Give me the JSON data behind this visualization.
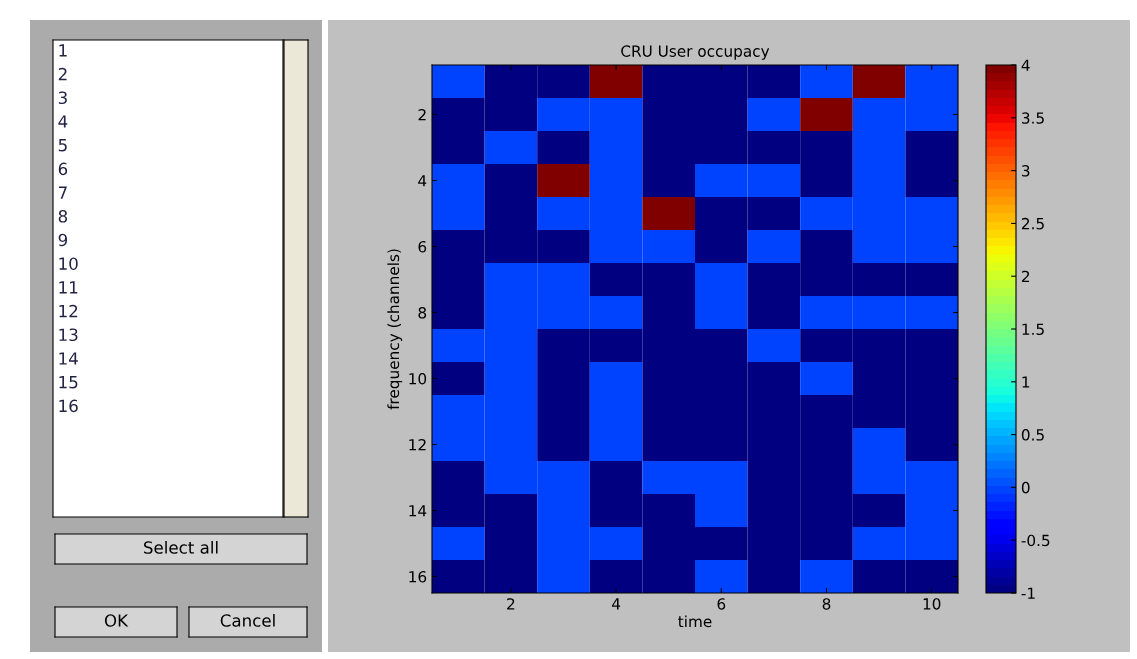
{
  "chart_data": {
    "type": "heatmap",
    "title": "CRU User occupacy",
    "xlabel": "time",
    "ylabel": "frequency (channels)",
    "categories": [
      null,
      "2",
      null,
      "4",
      null,
      "6",
      null,
      "8",
      null,
      "10"
    ],
    "y_categories": [
      null,
      "2",
      null,
      "4",
      null,
      "6",
      null,
      "8",
      null,
      "10",
      null,
      "12",
      null,
      "14",
      null,
      "16"
    ],
    "cells": [
      [
        0,
        -1,
        -1,
        4,
        -1,
        -1,
        -1,
        0,
        4,
        0
      ],
      [
        -1,
        -1,
        0,
        0,
        -1,
        -1,
        0,
        4,
        0,
        0
      ],
      [
        -1,
        0,
        -1,
        0,
        -1,
        -1,
        -1,
        -1,
        0,
        -1
      ],
      [
        0,
        -1,
        4,
        0,
        -1,
        0,
        0,
        -1,
        0,
        -1
      ],
      [
        0,
        -1,
        0,
        0,
        4,
        -1,
        -1,
        0,
        0,
        0
      ],
      [
        -1,
        -1,
        -1,
        0,
        0,
        -1,
        0,
        -1,
        0,
        0
      ],
      [
        -1,
        0,
        0,
        -1,
        -1,
        0,
        -1,
        -1,
        -1,
        -1
      ],
      [
        -1,
        0,
        0,
        0,
        -1,
        0,
        -1,
        0,
        0,
        0
      ],
      [
        0,
        0,
        -1,
        -1,
        -1,
        -1,
        0,
        -1,
        -1,
        -1
      ],
      [
        -1,
        0,
        -1,
        0,
        -1,
        -1,
        -1,
        0,
        -1,
        -1
      ],
      [
        0,
        0,
        -1,
        0,
        -1,
        -1,
        -1,
        -1,
        -1,
        -1
      ],
      [
        0,
        0,
        -1,
        0,
        -1,
        -1,
        -1,
        -1,
        0,
        -1
      ],
      [
        -1,
        0,
        0,
        -1,
        0,
        0,
        -1,
        -1,
        0,
        0
      ],
      [
        -1,
        -1,
        0,
        -1,
        -1,
        0,
        -1,
        -1,
        -1,
        0
      ],
      [
        0,
        -1,
        0,
        0,
        -1,
        -1,
        -1,
        -1,
        0,
        0
      ],
      [
        -1,
        -1,
        0,
        -1,
        -1,
        0,
        -1,
        0,
        -1,
        -1
      ]
    ],
    "clim": [
      -1,
      4
    ],
    "cticks": [
      -1,
      -0.5,
      0,
      0.5,
      1,
      1.5,
      2,
      2.5,
      3,
      3.5,
      4
    ],
    "annotations": [
      "1",
      "2",
      "3",
      "4",
      "5",
      "6",
      "7",
      "8",
      "9",
      "10",
      "11",
      "12",
      "13",
      "14",
      "15",
      "16",
      "Select all",
      "OK",
      "Cancel"
    ]
  }
}
